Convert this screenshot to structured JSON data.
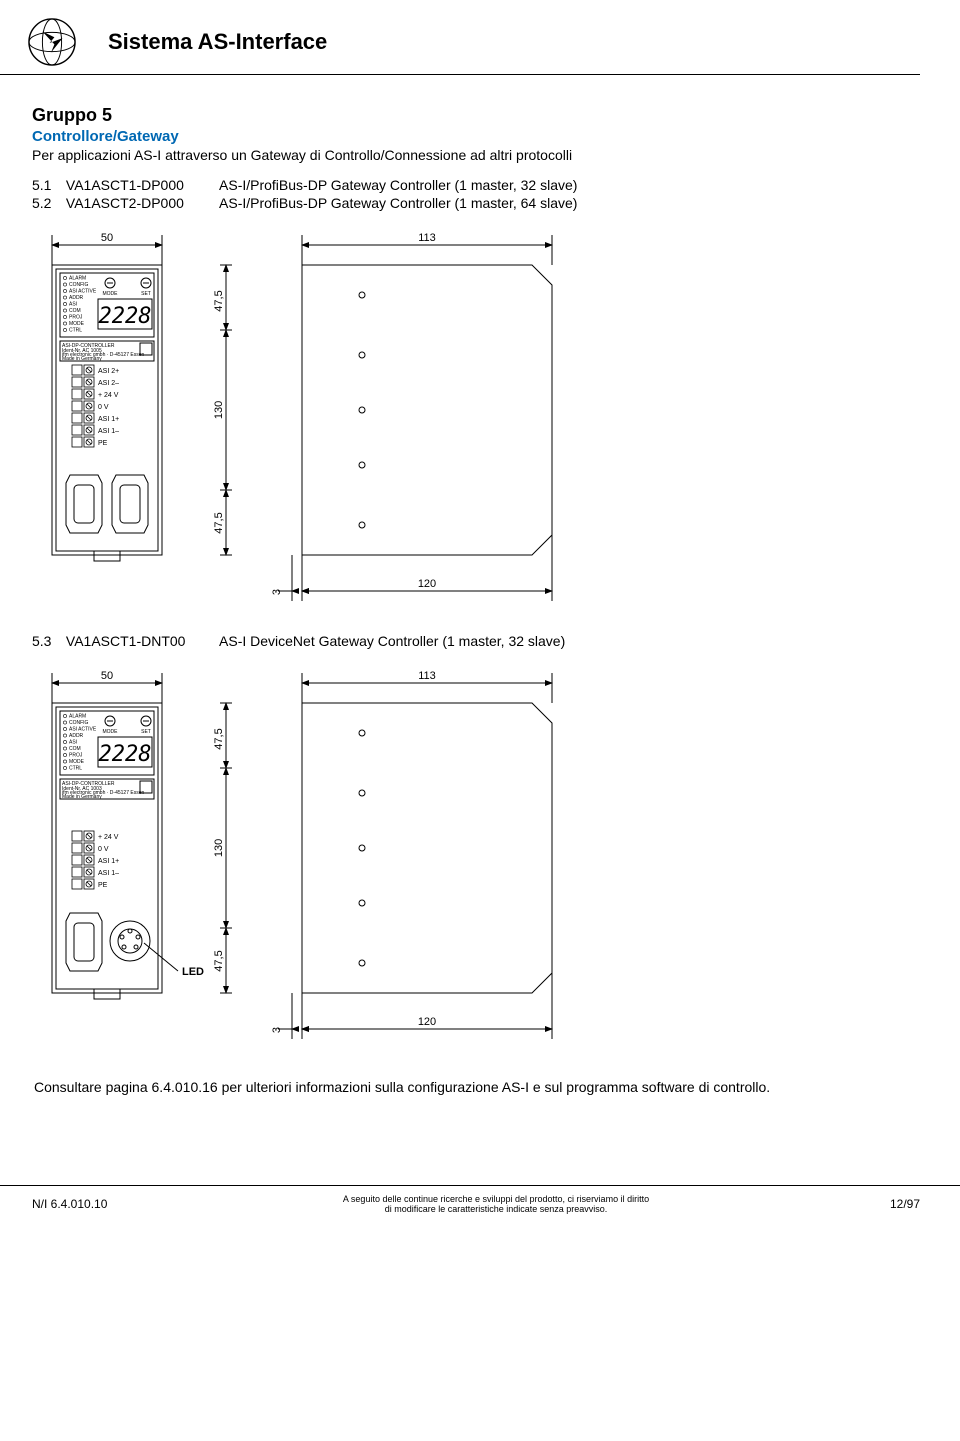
{
  "header": {
    "title": "Sistema AS-Interface"
  },
  "group": {
    "title": "Gruppo 5",
    "subtitle": "Controllore/Gateway",
    "desc": "Per applicazioni AS-I attraverso un Gateway di Controllo/Connessione ad altri protocolli"
  },
  "products": [
    {
      "num": "5.1",
      "code": "VA1ASCT1-DP000",
      "label": "AS-I/ProfiBus-DP Gateway Controller (1 master, 32 slave)"
    },
    {
      "num": "5.2",
      "code": "VA1ASCT2-DP000",
      "label": "AS-I/ProfiBus-DP Gateway Controller (1 master, 64 slave)"
    }
  ],
  "product3": {
    "num": "5.3",
    "code": "VA1ASCT1-DNT00",
    "label": "AS-I DeviceNet Gateway Controller (1 master, 32 slave)"
  },
  "drawing1": {
    "dims": {
      "w_left": "50",
      "w_right": "113",
      "h_top": "47,5",
      "h_mid": "130",
      "h_bot": "47,5",
      "off": "3",
      "depth": "120"
    },
    "device": {
      "title": "ASI-DP-CONTROLLER",
      "sub1": "Ident-Nr. AC 1005",
      "sub2": "ifm electronic gmbh · D-45127 Essen",
      "sub3": "Made in Germany",
      "front_labels": [
        "ALARM",
        "CONFIG",
        "ASI ACTIVE",
        "ADDR",
        "ASI",
        "COM",
        "PROJ",
        "MODE",
        "CTRL"
      ],
      "btn1": "MODE",
      "btn2": "SET",
      "display": "2228",
      "terminals": [
        "ASI 2+",
        "ASI 2–",
        "+ 24 V",
        "0 V",
        "ASI 1+",
        "ASI 1–",
        "PE"
      ]
    }
  },
  "drawing2": {
    "dims": {
      "w_left": "50",
      "w_right": "113",
      "h_top": "47,5",
      "h_mid": "130",
      "h_bot": "47,5",
      "off": "3",
      "depth": "120"
    },
    "led_label": "LED",
    "device": {
      "title": "ASI-DP-CONTROLLER",
      "sub1": "Ident-Nr. AC 1003",
      "sub2": "ifm electronic gmbh · D-45127 Essen",
      "sub3": "Made in Germany",
      "front_labels": [
        "ALARM",
        "CONFIG",
        "ASI ACTIVE",
        "ADDR",
        "ASI",
        "COM",
        "PROJ",
        "MODE",
        "CTRL"
      ],
      "btn1": "MODE",
      "btn2": "SET",
      "display": "2228",
      "terminals": [
        "+ 24 V",
        "0 V",
        "ASI 1+",
        "ASI 1–",
        "PE"
      ]
    }
  },
  "note": "Consultare pagina 6.4.010.16 per ulteriori informazioni sulla configurazione AS-I e sul programma software di controllo.",
  "footer": {
    "left": "N/I 6.4.010.10",
    "center1": "A seguito delle continue ricerche e sviluppi del prodotto, ci riserviamo il diritto",
    "center2": "di modificare le caratteristiche indicate senza preavviso.",
    "right": "12/97"
  },
  "colors": {
    "accent": "#0068b3",
    "line": "#000000",
    "bg": "#ffffff"
  }
}
